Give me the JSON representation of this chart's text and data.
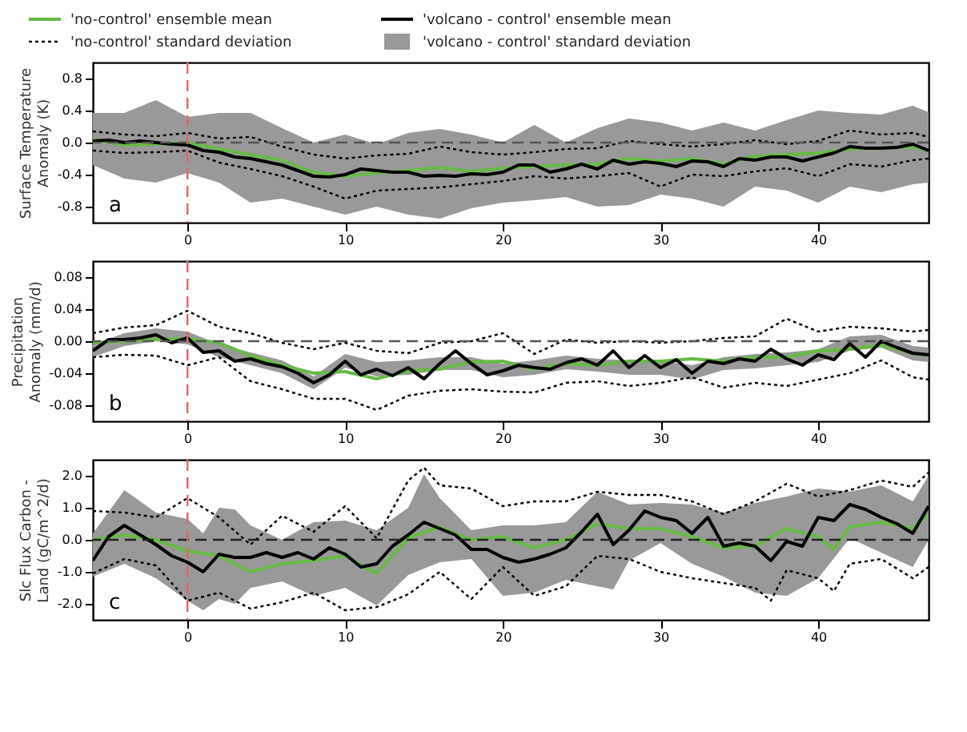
{
  "chart_data": [
    {
      "type": "line",
      "ylabel": "Surface Temperature Anomaly (K)",
      "xlim": [
        -6,
        47
      ],
      "xticks": [
        0,
        10,
        20,
        30,
        40
      ],
      "ylim": [
        -1,
        1
      ],
      "yticks": [
        {
          "value": -0.8,
          "label": "-0.8"
        },
        {
          "value": -0.4,
          "label": "-0.4"
        },
        {
          "value": 0,
          "label": "0.0"
        },
        {
          "value": 0.4,
          "label": "0.4"
        },
        {
          "value": 0.8,
          "label": "0.8"
        }
      ],
      "legend": "top left",
      "grid": false,
      "annotations": [
        "a"
      ],
      "ref_lines": [
        {
          "axis": "y",
          "value": 0,
          "color": "#555555",
          "line_style": "dashed"
        },
        {
          "axis": "x",
          "value": 0,
          "color": "#e06666",
          "line_style": "dashed"
        }
      ],
      "x": [
        -6,
        -5,
        -4,
        -3,
        -2,
        -1,
        0,
        1,
        2,
        3,
        4,
        5,
        6,
        7,
        8,
        9,
        10,
        11,
        12,
        13,
        14,
        15,
        16,
        17,
        18,
        19,
        20,
        21,
        22,
        23,
        24,
        25,
        26,
        27,
        28,
        29,
        30,
        31,
        32,
        33,
        34,
        35,
        36,
        37,
        38,
        39,
        40,
        41,
        42,
        43,
        44,
        45,
        46,
        47
      ],
      "series": [
        {
          "name": "'no-control' ensemble mean",
          "color": "#66bb44",
          "line_style": "solid",
          "x": [
            -6,
            -4,
            -2,
            0,
            2,
            4,
            6,
            8,
            10,
            12,
            14,
            16,
            18,
            20,
            22,
            24,
            26,
            28,
            30,
            32,
            34,
            36,
            38,
            40,
            42,
            44,
            46,
            47
          ],
          "values": [
            0.04,
            -0.03,
            -0.02,
            0.0,
            -0.08,
            -0.15,
            -0.22,
            -0.37,
            -0.42,
            -0.38,
            -0.35,
            -0.31,
            -0.36,
            -0.32,
            -0.3,
            -0.28,
            -0.27,
            -0.2,
            -0.23,
            -0.2,
            -0.27,
            -0.17,
            -0.15,
            -0.13,
            -0.08,
            -0.07,
            -0.05,
            -0.1
          ]
        },
        {
          "name": "'no-control' standard deviation",
          "color": "#000000",
          "line_style": "dotted",
          "x": [
            -6,
            -4,
            -2,
            0,
            2,
            4,
            6,
            8,
            10,
            12,
            14,
            16,
            18,
            20,
            22,
            24,
            26,
            28,
            30,
            32,
            34,
            36,
            38,
            40,
            42,
            44,
            46,
            47
          ],
          "values": [
            0.14,
            0.1,
            0.08,
            0.12,
            0.05,
            0.07,
            -0.05,
            -0.15,
            -0.2,
            -0.16,
            -0.14,
            -0.05,
            -0.12,
            -0.15,
            -0.12,
            -0.08,
            -0.07,
            0.02,
            -0.02,
            -0.05,
            -0.02,
            0.03,
            -0.02,
            0.02,
            0.15,
            0.1,
            0.12,
            0.07
          ]
        },
        {
          "name": "'volcano - control' ensemble mean",
          "color": "#000000",
          "line_style": "solid",
          "values": [
            0.02,
            0.03,
            0.0,
            0.02,
            0.0,
            -0.02,
            -0.03,
            -0.1,
            -0.12,
            -0.18,
            -0.2,
            -0.24,
            -0.28,
            -0.35,
            -0.42,
            -0.43,
            -0.4,
            -0.33,
            -0.35,
            -0.37,
            -0.37,
            -0.42,
            -0.41,
            -0.42,
            -0.39,
            -0.4,
            -0.37,
            -0.28,
            -0.28,
            -0.37,
            -0.33,
            -0.27,
            -0.33,
            -0.22,
            -0.27,
            -0.24,
            -0.26,
            -0.3,
            -0.23,
            -0.24,
            -0.3,
            -0.2,
            -0.22,
            -0.18,
            -0.18,
            -0.23,
            -0.18,
            -0.13,
            -0.05,
            -0.07,
            -0.07,
            -0.06,
            -0.02,
            -0.1
          ]
        },
        {
          "name": "'volcano - control' standard deviation",
          "type": "area",
          "color": "#999999",
          "x": [
            -6,
            -4,
            -2,
            0,
            2,
            4,
            6,
            8,
            10,
            12,
            14,
            16,
            18,
            20,
            22,
            24,
            26,
            28,
            30,
            32,
            34,
            36,
            38,
            40,
            42,
            44,
            46,
            47
          ],
          "values": [
            null,
            null,
            null,
            null,
            null,
            null,
            null,
            null,
            null,
            null,
            null,
            null,
            null,
            null,
            null,
            null,
            null,
            null,
            null,
            null,
            null,
            null,
            null,
            null,
            null,
            null,
            null,
            null
          ],
          "upper": [
            0.37,
            0.37,
            0.53,
            0.32,
            0.37,
            0.37,
            0.18,
            0.0,
            0.1,
            -0.02,
            0.12,
            0.17,
            0.1,
            0.0,
            0.22,
            0.0,
            0.18,
            0.3,
            0.25,
            0.15,
            0.25,
            0.15,
            0.28,
            0.4,
            0.37,
            0.35,
            0.46,
            0.38
          ],
          "lower": [
            -0.28,
            -0.45,
            -0.5,
            -0.38,
            -0.5,
            -0.75,
            -0.7,
            -0.8,
            -0.9,
            -0.8,
            -0.9,
            -0.95,
            -0.82,
            -0.75,
            -0.72,
            -0.68,
            -0.8,
            -0.78,
            -0.65,
            -0.7,
            -0.8,
            -0.55,
            -0.6,
            -0.75,
            -0.55,
            -0.62,
            -0.52,
            -0.5
          ]
        },
        {
          "color": "#000000",
          "line_style": "dotted",
          "x": [
            -6,
            -4,
            -2,
            0,
            2,
            4,
            6,
            8,
            10,
            12,
            14,
            16,
            18,
            20,
            22,
            24,
            26,
            28,
            30,
            32,
            34,
            36,
            38,
            40,
            42,
            44,
            46,
            47
          ],
          "values": [
            -0.1,
            -0.13,
            -0.12,
            -0.1,
            -0.25,
            -0.33,
            -0.42,
            -0.55,
            -0.7,
            -0.6,
            -0.58,
            -0.56,
            -0.52,
            -0.48,
            -0.42,
            -0.45,
            -0.42,
            -0.38,
            -0.55,
            -0.4,
            -0.42,
            -0.36,
            -0.32,
            -0.42,
            -0.27,
            -0.3,
            -0.22,
            -0.2
          ]
        }
      ]
    },
    {
      "type": "line",
      "ylabel": "Precipitation Anomaly (mm/d)",
      "xlim": [
        -6,
        47
      ],
      "xticks": [
        0,
        10,
        20,
        30,
        40
      ],
      "ylim": [
        -0.1,
        0.1
      ],
      "yticks": [
        {
          "value": -0.08,
          "label": "-0.08"
        },
        {
          "value": -0.04,
          "label": "-0.04"
        },
        {
          "value": 0,
          "label": "0.00"
        },
        {
          "value": 0.04,
          "label": "0.04"
        },
        {
          "value": 0.08,
          "label": "0.08"
        }
      ],
      "grid": false,
      "annotations": [
        "b"
      ],
      "ref_lines": [
        {
          "axis": "y",
          "value": 0,
          "color": "#555555",
          "line_style": "dashed"
        },
        {
          "axis": "x",
          "value": 0,
          "color": "#e06666",
          "line_style": "dashed"
        }
      ],
      "x": [
        -6,
        -5,
        -4,
        -3,
        -2,
        -1,
        0,
        1,
        2,
        3,
        4,
        5,
        6,
        7,
        8,
        9,
        10,
        11,
        12,
        13,
        14,
        15,
        16,
        17,
        18,
        19,
        20,
        21,
        22,
        23,
        24,
        25,
        26,
        27,
        28,
        29,
        30,
        31,
        32,
        33,
        34,
        35,
        36,
        37,
        38,
        39,
        40,
        41,
        42,
        43,
        44,
        45,
        46,
        47
      ],
      "series": [
        {
          "color": "#66bb44",
          "line_style": "solid",
          "x": [
            -6,
            -4,
            -2,
            0,
            2,
            4,
            6,
            8,
            10,
            12,
            14,
            16,
            18,
            20,
            22,
            24,
            26,
            28,
            30,
            32,
            34,
            36,
            38,
            40,
            42,
            44,
            46,
            47
          ],
          "values": [
            -0.002,
            0.0,
            0.002,
            0.003,
            -0.002,
            -0.018,
            -0.03,
            -0.04,
            -0.038,
            -0.047,
            -0.037,
            -0.035,
            -0.026,
            -0.025,
            -0.035,
            -0.028,
            -0.03,
            -0.025,
            -0.025,
            -0.022,
            -0.025,
            -0.02,
            -0.02,
            -0.012,
            -0.01,
            -0.005,
            -0.015,
            -0.018
          ]
        },
        {
          "color": "#000000",
          "line_style": "dotted",
          "x": [
            -6,
            -4,
            -2,
            0,
            2,
            4,
            6,
            8,
            10,
            12,
            14,
            16,
            18,
            20,
            22,
            24,
            26,
            28,
            30,
            32,
            34,
            36,
            38,
            40,
            42,
            44,
            46,
            47
          ],
          "values": [
            0.01,
            0.017,
            0.02,
            0.038,
            0.018,
            0.01,
            -0.002,
            -0.01,
            -0.002,
            -0.012,
            -0.015,
            -0.002,
            0.0,
            0.01,
            -0.016,
            0.002,
            -0.002,
            0.0,
            -0.002,
            0.0,
            0.004,
            0.006,
            0.028,
            0.012,
            0.018,
            0.016,
            0.012,
            0.014
          ]
        },
        {
          "color": "#000000",
          "line_style": "solid",
          "values": [
            -0.012,
            0.002,
            0.002,
            0.004,
            0.008,
            -0.002,
            0.004,
            -0.014,
            -0.012,
            -0.025,
            -0.022,
            -0.028,
            -0.032,
            -0.04,
            -0.052,
            -0.042,
            -0.025,
            -0.042,
            -0.035,
            -0.043,
            -0.033,
            -0.047,
            -0.028,
            -0.012,
            -0.028,
            -0.042,
            -0.037,
            -0.03,
            -0.033,
            -0.035,
            -0.027,
            -0.022,
            -0.03,
            -0.012,
            -0.033,
            -0.018,
            -0.033,
            -0.023,
            -0.04,
            -0.025,
            -0.028,
            -0.022,
            -0.025,
            -0.01,
            -0.022,
            -0.03,
            -0.017,
            -0.023,
            -0.003,
            -0.02,
            0.0,
            -0.008,
            -0.015,
            -0.017
          ]
        },
        {
          "type": "area",
          "color": "#999999",
          "x": [
            -6,
            -4,
            -2,
            0,
            2,
            4,
            6,
            8,
            10,
            12,
            14,
            16,
            18,
            20,
            22,
            24,
            26,
            28,
            30,
            32,
            34,
            36,
            38,
            40,
            42,
            44,
            46,
            47
          ],
          "values": [
            null,
            null,
            null,
            null,
            null,
            null,
            null,
            null,
            null,
            null,
            null,
            null,
            null,
            null,
            null,
            null,
            null,
            null,
            null,
            null,
            null,
            null,
            null,
            null,
            null,
            null,
            null,
            null
          ],
          "upper": [
            -0.004,
            0.01,
            0.016,
            0.012,
            -0.004,
            -0.014,
            -0.024,
            -0.044,
            -0.016,
            -0.026,
            -0.024,
            -0.02,
            -0.02,
            -0.028,
            -0.024,
            -0.018,
            -0.022,
            -0.024,
            -0.024,
            -0.03,
            -0.02,
            -0.016,
            -0.014,
            -0.01,
            0.006,
            0.008,
            -0.006,
            -0.008
          ],
          "lower": [
            -0.02,
            -0.006,
            0.0,
            -0.004,
            -0.02,
            -0.03,
            -0.04,
            -0.06,
            -0.033,
            -0.044,
            -0.042,
            -0.036,
            -0.036,
            -0.045,
            -0.042,
            -0.035,
            -0.038,
            -0.042,
            -0.042,
            -0.048,
            -0.036,
            -0.034,
            -0.03,
            -0.026,
            -0.012,
            -0.008,
            -0.024,
            -0.026
          ]
        },
        {
          "color": "#000000",
          "line_style": "dotted",
          "x": [
            -6,
            -4,
            -2,
            0,
            2,
            4,
            6,
            8,
            10,
            12,
            14,
            16,
            18,
            20,
            22,
            24,
            26,
            28,
            30,
            32,
            34,
            36,
            38,
            40,
            42,
            44,
            46,
            47
          ],
          "values": [
            -0.02,
            -0.017,
            -0.018,
            -0.03,
            -0.02,
            -0.05,
            -0.06,
            -0.072,
            -0.072,
            -0.086,
            -0.068,
            -0.062,
            -0.06,
            -0.063,
            -0.064,
            -0.052,
            -0.05,
            -0.056,
            -0.052,
            -0.045,
            -0.058,
            -0.052,
            -0.056,
            -0.048,
            -0.04,
            -0.024,
            -0.045,
            -0.048
          ]
        }
      ]
    },
    {
      "type": "line",
      "ylabel": "Slc Flux Carbon - Land (gC/m^2/d)",
      "xlim": [
        -6,
        47
      ],
      "xticks": [
        0,
        10,
        20,
        30,
        40
      ],
      "ylim": [
        -2.5,
        2.5
      ],
      "yticks": [
        {
          "value": -2,
          "label": "-2.0"
        },
        {
          "value": -1,
          "label": "-1.0"
        },
        {
          "value": 0,
          "label": "0.0"
        },
        {
          "value": 1,
          "label": "1.0"
        },
        {
          "value": 2,
          "label": "2.0"
        }
      ],
      "grid": false,
      "annotations": [
        "c"
      ],
      "ref_lines": [
        {
          "axis": "y",
          "value": 0,
          "color": "#222222",
          "line_style": "dashed"
        },
        {
          "axis": "x",
          "value": 0,
          "color": "#e06666",
          "line_style": "dashed"
        }
      ],
      "x": [
        -6,
        -5,
        -4,
        -3,
        -2,
        -1,
        0,
        1,
        2,
        3,
        4,
        5,
        6,
        7,
        8,
        9,
        10,
        11,
        12,
        13,
        14,
        15,
        16,
        17,
        18,
        19,
        20,
        21,
        22,
        23,
        24,
        25,
        26,
        27,
        28,
        29,
        30,
        31,
        32,
        33,
        34,
        35,
        36,
        37,
        38,
        39,
        40,
        41,
        42,
        43,
        44,
        45,
        46,
        47
      ],
      "series": [
        {
          "color": "#66bb44",
          "line_style": "solid",
          "x": [
            -6,
            -4,
            -2,
            0,
            2,
            4,
            6,
            8,
            10,
            12,
            14,
            16,
            18,
            20,
            22,
            24,
            26,
            28,
            30,
            32,
            34,
            36,
            38,
            40,
            41,
            42,
            44,
            46,
            47
          ],
          "values": [
            0.0,
            0.15,
            0.0,
            -0.35,
            -0.5,
            -1.0,
            -0.75,
            -0.65,
            -0.5,
            -1.05,
            0.05,
            0.4,
            0.0,
            0.1,
            -0.25,
            0.0,
            0.5,
            0.35,
            0.35,
            0.1,
            -0.25,
            -0.2,
            0.35,
            0.1,
            -0.3,
            0.4,
            0.55,
            0.35,
            0.8
          ]
        },
        {
          "color": "#000000",
          "line_style": "dotted",
          "x": [
            -6,
            -4,
            -2,
            0,
            2,
            4,
            6,
            8,
            10,
            12,
            14,
            15,
            16,
            18,
            20,
            22,
            24,
            26,
            28,
            30,
            32,
            34,
            36,
            38,
            40,
            42,
            44,
            46,
            47
          ],
          "values": [
            0.9,
            0.85,
            0.7,
            1.3,
            0.7,
            -0.15,
            0.75,
            0.25,
            1.05,
            0.05,
            1.85,
            2.25,
            1.7,
            1.6,
            1.05,
            1.2,
            1.2,
            1.5,
            1.4,
            1.4,
            1.2,
            0.8,
            1.2,
            1.75,
            1.35,
            1.55,
            1.85,
            1.65,
            2.1
          ]
        },
        {
          "color": "#000000",
          "line_style": "solid",
          "values": [
            -0.65,
            0.1,
            0.45,
            0.15,
            -0.15,
            -0.5,
            -0.7,
            -1.0,
            -0.45,
            -0.55,
            -0.55,
            -0.4,
            -0.55,
            -0.4,
            -0.6,
            -0.25,
            -0.45,
            -0.85,
            -0.75,
            -0.2,
            0.15,
            0.55,
            0.35,
            0.15,
            -0.3,
            -0.3,
            -0.55,
            -0.7,
            -0.6,
            -0.45,
            -0.25,
            0.25,
            0.8,
            -0.15,
            0.3,
            0.9,
            0.7,
            0.6,
            0.2,
            0.7,
            -0.2,
            -0.1,
            -0.2,
            -0.65,
            -0.05,
            -0.2,
            0.7,
            0.6,
            1.1,
            0.95,
            0.7,
            0.5,
            0.2,
            1.05
          ]
        },
        {
          "type": "area",
          "color": "#999999",
          "x": [
            -6,
            -4,
            -2,
            0,
            1,
            2,
            3,
            4,
            6,
            8,
            10,
            12,
            14,
            15,
            16,
            18,
            20,
            22,
            24,
            26,
            27,
            28,
            30,
            32,
            34,
            36,
            38,
            40,
            42,
            44,
            46,
            47
          ],
          "values": [
            null,
            null,
            null,
            null,
            null,
            null,
            null,
            null,
            null,
            null,
            null,
            null,
            null,
            null,
            null,
            null,
            null,
            null,
            null,
            null,
            null,
            null,
            null,
            null,
            null,
            null,
            null,
            null,
            null,
            null,
            null,
            null
          ],
          "upper": [
            0.2,
            1.55,
            0.85,
            0.65,
            0.2,
            1.0,
            0.95,
            0.45,
            0.0,
            0.55,
            0.6,
            0.3,
            1.0,
            2.05,
            1.3,
            0.3,
            0.45,
            0.45,
            0.55,
            1.5,
            1.3,
            1.1,
            1.15,
            1.1,
            0.85,
            1.15,
            1.35,
            1.6,
            1.5,
            1.7,
            1.2,
            2.0
          ],
          "lower": [
            -1.15,
            -0.75,
            -1.2,
            -1.9,
            -2.2,
            -1.85,
            -2.0,
            -1.5,
            -1.3,
            -1.75,
            -1.5,
            -2.05,
            -1.1,
            -0.9,
            -0.7,
            -0.6,
            -1.75,
            -1.65,
            -1.25,
            -1.45,
            -1.55,
            -0.65,
            -0.1,
            -0.75,
            -1.15,
            -1.65,
            -1.75,
            -1.2,
            0.05,
            -0.4,
            -0.85,
            0.0
          ]
        },
        {
          "color": "#000000",
          "line_style": "dotted",
          "x": [
            -6,
            -4,
            -2,
            0,
            2,
            4,
            6,
            8,
            10,
            12,
            14,
            16,
            18,
            20,
            22,
            24,
            26,
            28,
            30,
            32,
            34,
            36,
            37,
            38,
            40,
            41,
            42,
            44,
            46,
            47
          ],
          "values": [
            -1.05,
            -0.6,
            -0.8,
            -1.9,
            -1.65,
            -2.15,
            -1.95,
            -1.65,
            -2.2,
            -2.1,
            -1.7,
            -1.0,
            -1.85,
            -0.85,
            -1.75,
            -1.45,
            -0.5,
            -0.6,
            -1.0,
            -1.2,
            -1.35,
            -1.5,
            -1.9,
            -0.95,
            -1.2,
            -1.6,
            -0.75,
            -0.6,
            -1.2,
            -0.85
          ]
        }
      ]
    }
  ]
}
